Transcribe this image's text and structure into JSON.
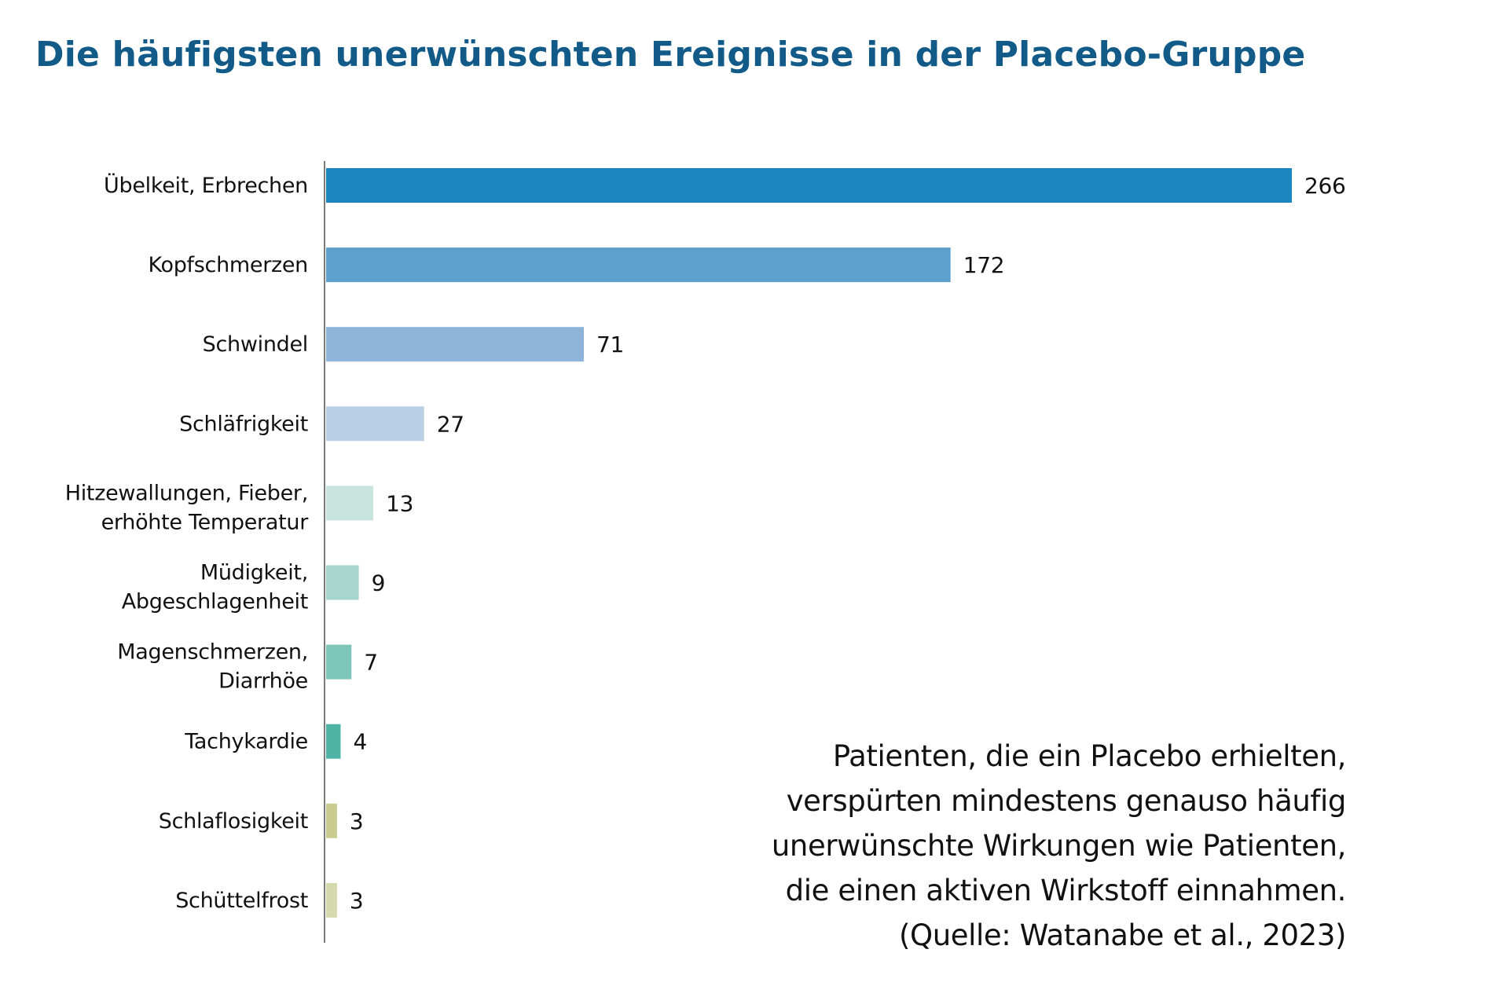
{
  "chart_data": {
    "type": "bar",
    "orientation": "horizontal",
    "title": "Die häufigsten unerwünschten Ereignisse in der Placebo-Gruppe",
    "xlabel": "",
    "ylabel": "",
    "xlim": [
      0,
      266
    ],
    "grid": false,
    "legend": "none",
    "categories": [
      [
        "Übelkeit, Erbrechen"
      ],
      [
        "Kopfschmerzen"
      ],
      [
        "Schwindel"
      ],
      [
        "Schläfrigkeit"
      ],
      [
        "Hitzewallungen, Fieber,",
        "erhöhte Temperatur"
      ],
      [
        "Müdigkeit,",
        "Abgeschlagenheit"
      ],
      [
        "Magenschmerzen,",
        "Diarrhöe"
      ],
      [
        "Tachykardie"
      ],
      [
        "Schlaflosigkeit"
      ],
      [
        "Schüttelfrost"
      ]
    ],
    "values": [
      266,
      172,
      71,
      27,
      13,
      9,
      7,
      4,
      3,
      3
    ],
    "value_labels": [
      "266",
      "172",
      "71",
      "27",
      "13",
      "9",
      "7",
      "4",
      "3",
      "3"
    ],
    "colors": [
      "#1a87c0",
      "#5d9fcd",
      "#8fb4da",
      "#b8cfe5",
      "#c8e4de",
      "#a6d6cd",
      "#7dc6b9",
      "#4fb4a5",
      "#cacc8f",
      "#d6d8ad"
    ],
    "annotation": [
      "Patienten, die ein Placebo erhielten,",
      "verspürten mindestens genauso häufig",
      "unerwünschte Wirkungen wie Patienten,",
      "die einen aktiven Wirkstoff einnahmen.",
      "(Quelle: Watanabe et al., 2023)"
    ]
  },
  "colors": {
    "title": "#125b88",
    "axis": "#7a7a7a",
    "text": "#111111"
  }
}
